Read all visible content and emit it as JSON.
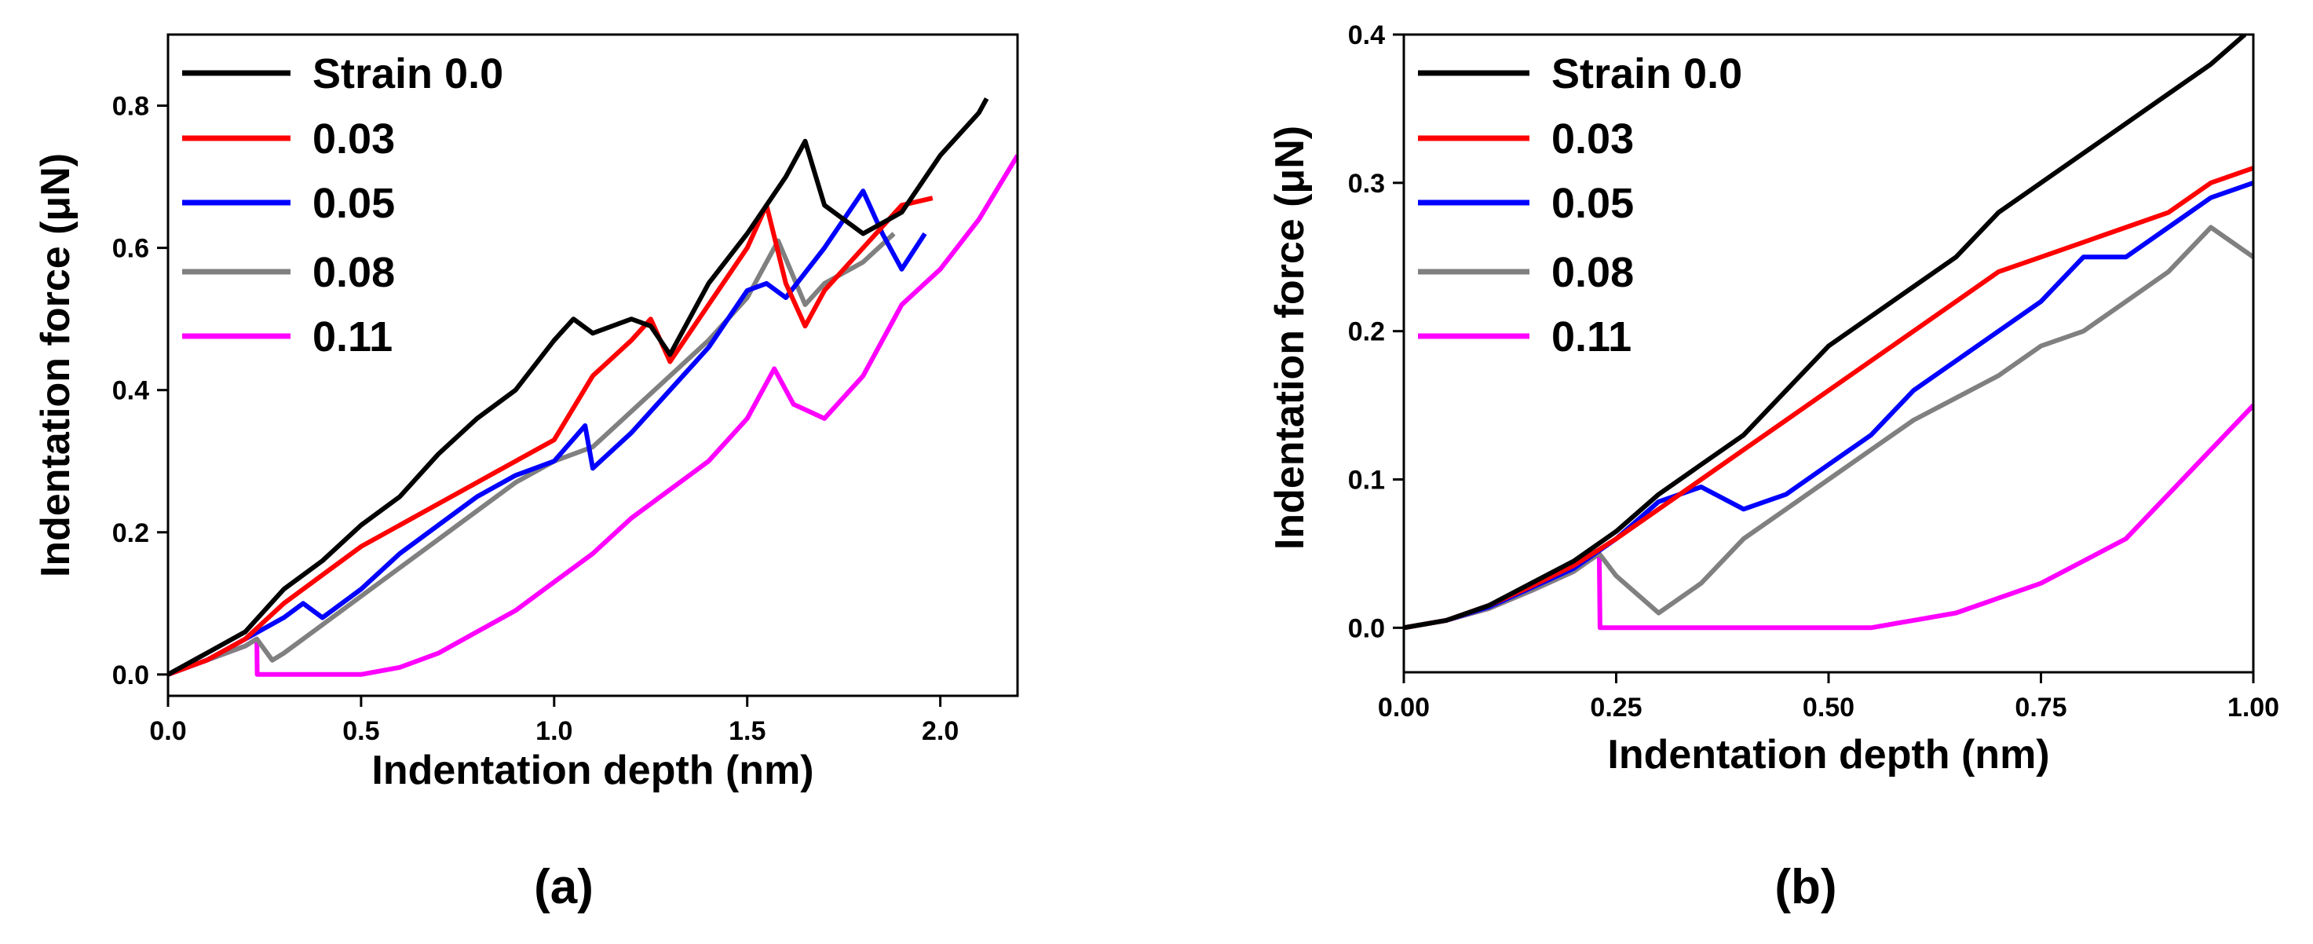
{
  "chart_data": [
    {
      "panel": "(a)",
      "type": "line",
      "xlabel": "Indentation depth (nm)",
      "ylabel": "Indentation force (μN)",
      "xlim": [
        0.0,
        2.2
      ],
      "ylim": [
        -0.03,
        0.9
      ],
      "xticks": [
        0.0,
        0.5,
        1.0,
        1.5,
        2.0
      ],
      "xtick_labels": [
        "0.0",
        "0.5",
        "1.0",
        "1.5",
        "2.0"
      ],
      "yticks": [
        0.0,
        0.2,
        0.4,
        0.6,
        0.8
      ],
      "ytick_labels": [
        "0.0",
        "0.2",
        "0.4",
        "0.6",
        "0.8"
      ],
      "legend_position": "top-left",
      "series": [
        {
          "name": "Strain 0.0",
          "color": "#000000",
          "x": [
            0.0,
            0.1,
            0.2,
            0.3,
            0.4,
            0.5,
            0.6,
            0.7,
            0.8,
            0.9,
            1.0,
            1.05,
            1.1,
            1.2,
            1.25,
            1.3,
            1.4,
            1.5,
            1.6,
            1.65,
            1.7,
            1.8,
            1.9,
            2.0,
            2.1,
            2.12
          ],
          "y": [
            0.0,
            0.03,
            0.06,
            0.12,
            0.16,
            0.21,
            0.25,
            0.31,
            0.36,
            0.4,
            0.47,
            0.5,
            0.48,
            0.5,
            0.49,
            0.45,
            0.55,
            0.62,
            0.7,
            0.75,
            0.66,
            0.62,
            0.65,
            0.73,
            0.79,
            0.81
          ]
        },
        {
          "name": "0.03",
          "color": "#ff0000",
          "x": [
            0.0,
            0.1,
            0.2,
            0.3,
            0.4,
            0.5,
            0.6,
            0.7,
            0.8,
            0.9,
            1.0,
            1.1,
            1.2,
            1.25,
            1.3,
            1.4,
            1.5,
            1.55,
            1.6,
            1.65,
            1.7,
            1.8,
            1.9,
            1.98
          ],
          "y": [
            0.0,
            0.02,
            0.05,
            0.1,
            0.14,
            0.18,
            0.21,
            0.24,
            0.27,
            0.3,
            0.33,
            0.42,
            0.47,
            0.5,
            0.44,
            0.52,
            0.6,
            0.66,
            0.55,
            0.49,
            0.54,
            0.6,
            0.66,
            0.67
          ]
        },
        {
          "name": "0.05",
          "color": "#0000ff",
          "x": [
            0.0,
            0.1,
            0.2,
            0.3,
            0.35,
            0.4,
            0.5,
            0.6,
            0.7,
            0.8,
            0.9,
            1.0,
            1.08,
            1.1,
            1.2,
            1.3,
            1.4,
            1.5,
            1.55,
            1.6,
            1.7,
            1.8,
            1.85,
            1.9,
            1.96
          ],
          "y": [
            0.0,
            0.02,
            0.05,
            0.08,
            0.1,
            0.08,
            0.12,
            0.17,
            0.21,
            0.25,
            0.28,
            0.3,
            0.35,
            0.29,
            0.34,
            0.4,
            0.46,
            0.54,
            0.55,
            0.53,
            0.6,
            0.68,
            0.62,
            0.57,
            0.62
          ]
        },
        {
          "name": "0.08",
          "color": "#808080",
          "x": [
            0.0,
            0.1,
            0.2,
            0.23,
            0.27,
            0.3,
            0.4,
            0.5,
            0.6,
            0.7,
            0.8,
            0.9,
            1.0,
            1.1,
            1.2,
            1.3,
            1.4,
            1.5,
            1.58,
            1.65,
            1.7,
            1.8,
            1.88
          ],
          "y": [
            0.0,
            0.02,
            0.04,
            0.05,
            0.02,
            0.03,
            0.07,
            0.11,
            0.15,
            0.19,
            0.23,
            0.27,
            0.3,
            0.32,
            0.37,
            0.42,
            0.47,
            0.53,
            0.61,
            0.52,
            0.55,
            0.58,
            0.62
          ]
        },
        {
          "name": "0.11",
          "color": "#ff00ff",
          "x": [
            0.0,
            0.1,
            0.2,
            0.23,
            0.231,
            0.5,
            0.6,
            0.7,
            0.8,
            0.9,
            1.0,
            1.1,
            1.2,
            1.3,
            1.4,
            1.5,
            1.57,
            1.62,
            1.7,
            1.8,
            1.9,
            2.0,
            2.1,
            2.2
          ],
          "y": [
            0.0,
            0.02,
            0.04,
            0.05,
            0.0,
            0.0,
            0.01,
            0.03,
            0.06,
            0.09,
            0.13,
            0.17,
            0.22,
            0.26,
            0.3,
            0.36,
            0.43,
            0.38,
            0.36,
            0.42,
            0.52,
            0.57,
            0.64,
            0.73
          ]
        }
      ]
    },
    {
      "panel": "(b)",
      "type": "line",
      "xlabel": "Indentation depth (nm)",
      "ylabel": "Indentation force (μN)",
      "xlim": [
        0.0,
        1.0
      ],
      "ylim": [
        -0.03,
        0.4
      ],
      "xticks": [
        0.0,
        0.25,
        0.5,
        0.75,
        1.0
      ],
      "xtick_labels": [
        "0.00",
        "0.25",
        "0.50",
        "0.75",
        "1.00"
      ],
      "yticks": [
        0.0,
        0.1,
        0.2,
        0.3,
        0.4
      ],
      "ytick_labels": [
        "0.0",
        "0.1",
        "0.2",
        "0.3",
        "0.4"
      ],
      "legend_position": "top-left",
      "series": [
        {
          "name": "Strain 0.0",
          "color": "#000000",
          "x": [
            0.0,
            0.05,
            0.1,
            0.15,
            0.2,
            0.25,
            0.3,
            0.35,
            0.4,
            0.45,
            0.5,
            0.55,
            0.6,
            0.65,
            0.7,
            0.75,
            0.8,
            0.85,
            0.9,
            0.95,
            0.99
          ],
          "y": [
            0.0,
            0.005,
            0.015,
            0.03,
            0.045,
            0.065,
            0.09,
            0.11,
            0.13,
            0.16,
            0.19,
            0.21,
            0.23,
            0.25,
            0.28,
            0.3,
            0.32,
            0.34,
            0.36,
            0.38,
            0.4
          ]
        },
        {
          "name": "0.03",
          "color": "#ff0000",
          "x": [
            0.0,
            0.05,
            0.1,
            0.15,
            0.2,
            0.25,
            0.3,
            0.35,
            0.4,
            0.45,
            0.5,
            0.55,
            0.6,
            0.65,
            0.7,
            0.75,
            0.8,
            0.85,
            0.9,
            0.95,
            1.0
          ],
          "y": [
            0.0,
            0.005,
            0.015,
            0.028,
            0.042,
            0.06,
            0.08,
            0.1,
            0.12,
            0.14,
            0.16,
            0.18,
            0.2,
            0.22,
            0.24,
            0.25,
            0.26,
            0.27,
            0.28,
            0.3,
            0.31
          ]
        },
        {
          "name": "0.05",
          "color": "#0000ff",
          "x": [
            0.0,
            0.05,
            0.1,
            0.15,
            0.2,
            0.25,
            0.3,
            0.35,
            0.4,
            0.45,
            0.5,
            0.55,
            0.6,
            0.65,
            0.7,
            0.75,
            0.8,
            0.85,
            0.9,
            0.95,
            1.0
          ],
          "y": [
            0.0,
            0.005,
            0.014,
            0.027,
            0.04,
            0.06,
            0.085,
            0.095,
            0.08,
            0.09,
            0.11,
            0.13,
            0.16,
            0.18,
            0.2,
            0.22,
            0.25,
            0.25,
            0.27,
            0.29,
            0.3
          ]
        },
        {
          "name": "0.08",
          "color": "#808080",
          "x": [
            0.0,
            0.05,
            0.1,
            0.15,
            0.2,
            0.23,
            0.25,
            0.3,
            0.35,
            0.4,
            0.45,
            0.5,
            0.55,
            0.6,
            0.65,
            0.7,
            0.75,
            0.8,
            0.85,
            0.9,
            0.95,
            1.0
          ],
          "y": [
            0.0,
            0.005,
            0.013,
            0.025,
            0.038,
            0.05,
            0.035,
            0.01,
            0.03,
            0.06,
            0.08,
            0.1,
            0.12,
            0.14,
            0.155,
            0.17,
            0.19,
            0.2,
            0.22,
            0.24,
            0.27,
            0.25
          ]
        },
        {
          "name": "0.11",
          "color": "#ff00ff",
          "x": [
            0.0,
            0.05,
            0.1,
            0.15,
            0.2,
            0.23,
            0.231,
            0.55,
            0.6,
            0.65,
            0.7,
            0.75,
            0.8,
            0.85,
            0.9,
            0.95,
            1.0
          ],
          "y": [
            0.0,
            0.005,
            0.013,
            0.025,
            0.038,
            0.05,
            0.0,
            0.0,
            0.005,
            0.01,
            0.02,
            0.03,
            0.045,
            0.06,
            0.09,
            0.12,
            0.15
          ]
        }
      ]
    }
  ]
}
